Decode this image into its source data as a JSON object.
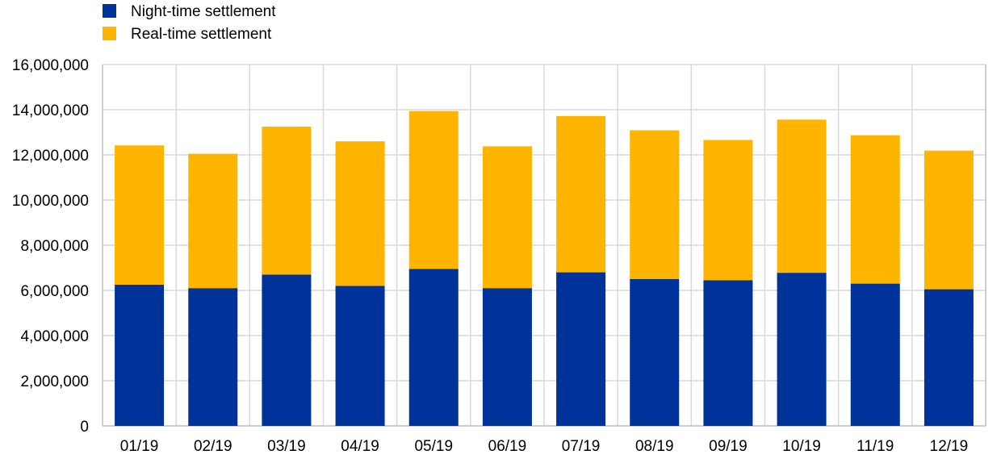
{
  "colors": {
    "night": "#00339a",
    "real": "#ffb400",
    "grid": "#d9d9d9",
    "axis": "#bfbfbf"
  },
  "chart_data": {
    "type": "bar",
    "stacked": true,
    "categories": [
      "01/19",
      "02/19",
      "03/19",
      "04/19",
      "05/19",
      "06/19",
      "07/19",
      "08/19",
      "09/19",
      "10/19",
      "11/19",
      "12/19"
    ],
    "series": [
      {
        "name": "Night-time settlement",
        "color": "#00339a",
        "values": [
          6250000,
          6100000,
          6700000,
          6200000,
          6950000,
          6100000,
          6800000,
          6500000,
          6450000,
          6780000,
          6300000,
          6050000
        ]
      },
      {
        "name": "Real-time settlement",
        "color": "#ffb400",
        "values": [
          6170000,
          5950000,
          6550000,
          6400000,
          6990000,
          6280000,
          6920000,
          6590000,
          6210000,
          6780000,
          6570000,
          6140000
        ]
      }
    ],
    "ylim": [
      0,
      16000000
    ],
    "yticks": [
      0,
      2000000,
      4000000,
      6000000,
      8000000,
      10000000,
      12000000,
      14000000,
      16000000
    ],
    "ytick_labels": [
      "0",
      "2,000,000",
      "4,000,000",
      "6,000,000",
      "8,000,000",
      "10,000,000",
      "12,000,000",
      "14,000,000",
      "16,000,000"
    ],
    "grid": true,
    "legend": "top-left"
  }
}
